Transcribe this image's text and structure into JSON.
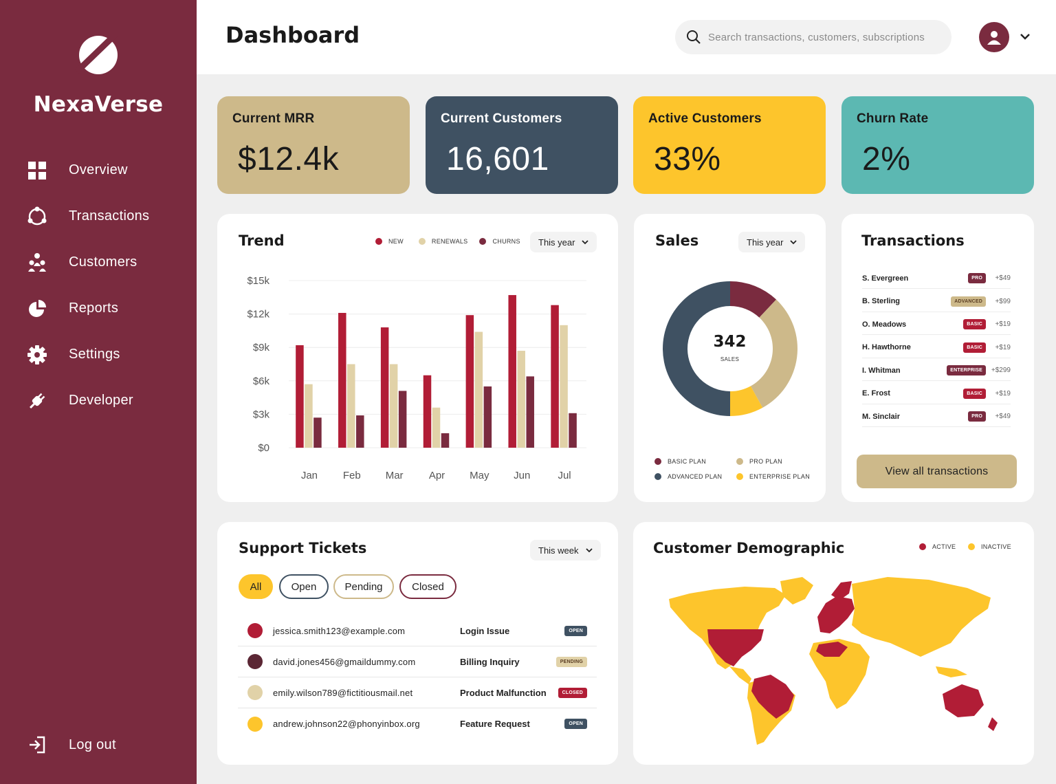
{
  "sidebar": {
    "brand": "NexaVerse",
    "items": [
      {
        "label": "Overview",
        "icon": "grid-icon"
      },
      {
        "label": "Transactions",
        "icon": "cycle-icon"
      },
      {
        "label": "Customers",
        "icon": "people-icon"
      },
      {
        "label": "Reports",
        "icon": "pie-icon"
      },
      {
        "label": "Settings",
        "icon": "gear-icon"
      },
      {
        "label": "Developer",
        "icon": "plug-icon"
      }
    ],
    "logout": "Log out"
  },
  "header": {
    "title": "Dashboard",
    "search_placeholder": "Search transactions, customers, subscriptions"
  },
  "kpis": [
    {
      "title": "Current MRR",
      "value": "$12.4k",
      "color": "#cdb98a",
      "text_color": "#1a1a1a"
    },
    {
      "title": "Current Customers",
      "value": "16,601",
      "color": "#3f5162",
      "text_color": "#ffffff"
    },
    {
      "title": "Active Customers",
      "value": "33%",
      "color": "#fdc52c",
      "text_color": "#1a1a1a"
    },
    {
      "title": "Churn Rate",
      "value": "2%",
      "color": "#5cb8b2",
      "text_color": "#1a1a1a"
    }
  ],
  "trend": {
    "title": "Trend",
    "period": "This year",
    "legend": [
      "NEW",
      "RENEWALS",
      "CHURNS"
    ]
  },
  "chart_data": [
    {
      "type": "bar",
      "title": "Trend",
      "categories": [
        "Jan",
        "Feb",
        "Mar",
        "Apr",
        "May",
        "Jun",
        "Jul"
      ],
      "y_ticks": [
        "$0",
        "$3k",
        "$6k",
        "$9k",
        "$12k",
        "$15k"
      ],
      "ylim": [
        0,
        15000
      ],
      "series": [
        {
          "name": "NEW",
          "color": "#b11d36",
          "values": [
            9200,
            12100,
            10800,
            6500,
            11900,
            13700,
            12800
          ]
        },
        {
          "name": "RENEWALS",
          "color": "#e1d2a8",
          "values": [
            5700,
            7500,
            7500,
            3600,
            10400,
            8700,
            11000
          ]
        },
        {
          "name": "CHURNS",
          "color": "#7a2b3f",
          "values": [
            2700,
            2900,
            5100,
            1300,
            5500,
            6400,
            3100
          ]
        }
      ]
    },
    {
      "type": "pie",
      "title": "Sales",
      "center_value": "342",
      "center_label": "SALES",
      "slices": [
        {
          "name": "BASIC PLAN",
          "color": "#7a2b3f",
          "value": 12
        },
        {
          "name": "PRO PLAN",
          "color": "#cdb98a",
          "value": 30
        },
        {
          "name": "ENTERPRISE PLAN",
          "color": "#fdc52c",
          "value": 8
        },
        {
          "name": "ADVANCED PLAN",
          "color": "#3f5162",
          "value": 50
        }
      ]
    }
  ],
  "sales": {
    "title": "Sales",
    "period": "This year",
    "legend": [
      "BASIC PLAN",
      "PRO PLAN",
      "ADVANCED PLAN",
      "ENTERPRISE PLAN"
    ]
  },
  "transactions": {
    "title": "Transactions",
    "rows": [
      {
        "name": "S. Evergreen",
        "plan": "PRO",
        "amount": "+$49",
        "color": "#7a2b3f"
      },
      {
        "name": "B. Sterling",
        "plan": "ADVANCED",
        "amount": "+$99",
        "color": "#cdb98a"
      },
      {
        "name": "O. Meadows",
        "plan": "BASIC",
        "amount": "+$19",
        "color": "#b11d36"
      },
      {
        "name": "H. Hawthorne",
        "plan": "BASIC",
        "amount": "+$19",
        "color": "#b11d36"
      },
      {
        "name": "I. Whitman",
        "plan": "ENTERPRISE",
        "amount": "+$299",
        "color": "#7a2b3f"
      },
      {
        "name": "E. Frost",
        "plan": "BASIC",
        "amount": "+$19",
        "color": "#b11d36"
      },
      {
        "name": "M. Sinclair",
        "plan": "PRO",
        "amount": "+$49",
        "color": "#7a2b3f"
      }
    ],
    "view_all": "View all transactions"
  },
  "support": {
    "title": "Support Tickets",
    "period": "This week",
    "filters": [
      "All",
      "Open",
      "Pending",
      "Closed"
    ],
    "tickets": [
      {
        "email": "jessica.smith123@example.com",
        "subject": "Login Issue",
        "status": "OPEN",
        "dot": "#b11d36"
      },
      {
        "email": "david.jones456@gmaildummy.com",
        "subject": "Billing Inquiry",
        "status": "PENDING",
        "dot": "#5b2634"
      },
      {
        "email": "emily.wilson789@fictitiousmail.net",
        "subject": "Product Malfunction",
        "status": "CLOSED",
        "dot": "#e1d2a8"
      },
      {
        "email": "andrew.johnson22@phonyinbox.org",
        "subject": "Feature Request",
        "status": "OPEN",
        "dot": "#fdc52c"
      }
    ]
  },
  "demographic": {
    "title": "Customer Demographic",
    "legend": [
      "ACTIVE",
      "INACTIVE"
    ]
  },
  "colors": {
    "sidebar": "#7a2b3f",
    "accent_red": "#b11d36",
    "gold": "#fdc52c",
    "tan": "#cdb98a",
    "slate": "#3f5162",
    "teal": "#5cb8b2"
  }
}
